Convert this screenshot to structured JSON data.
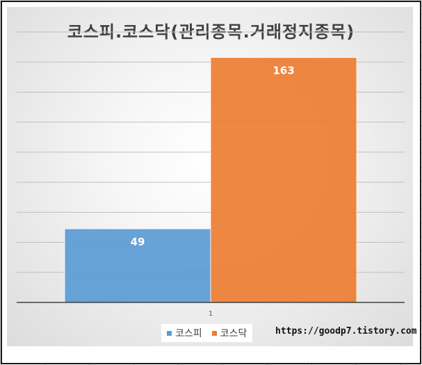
{
  "chart_data": {
    "type": "bar",
    "title": "코스피.코스닥(관리종목.거래정지종목)",
    "categories": [
      "1"
    ],
    "series": [
      {
        "name": "코스피",
        "values": [
          49
        ],
        "color": "#5b9bd5"
      },
      {
        "name": "코스닥",
        "values": [
          163
        ],
        "color": "#ed7d31"
      }
    ],
    "ylim": [
      0,
      180
    ],
    "grid": true,
    "legend_position": "bottom"
  },
  "watermark": "https://goodp7.tistory.com"
}
